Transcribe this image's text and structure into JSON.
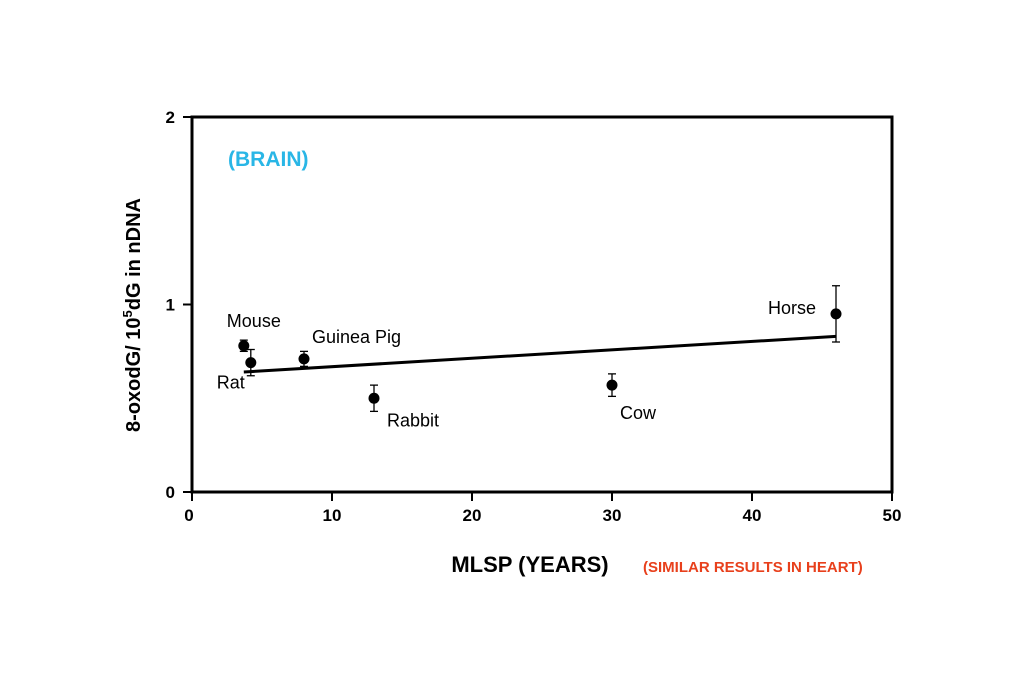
{
  "chart_data": {
    "type": "scatter",
    "title": "",
    "panel_label": "(BRAIN)",
    "note": "(SIMILAR RESULTS IN HEART)",
    "xlabel": "MLSP (YEARS)",
    "ylabel_main": "8-oxodG/ 10",
    "ylabel_sup": "5",
    "ylabel_end": "dG in nDNA",
    "xlim": [
      0,
      50
    ],
    "ylim": [
      0,
      2
    ],
    "x_ticks": [
      0,
      10,
      20,
      30,
      40,
      50
    ],
    "y_ticks": [
      0,
      1,
      2
    ],
    "grid": false,
    "points": [
      {
        "name": "Mouse",
        "x": 3.7,
        "y": 0.78,
        "err": 0.03
      },
      {
        "name": "Rat",
        "x": 4.2,
        "y": 0.69,
        "err": 0.07
      },
      {
        "name": "Guinea Pig",
        "x": 8.0,
        "y": 0.71,
        "err": 0.04
      },
      {
        "name": "Rabbit",
        "x": 13.0,
        "y": 0.5,
        "err": 0.07
      },
      {
        "name": "Cow",
        "x": 30.0,
        "y": 0.57,
        "err": 0.06
      },
      {
        "name": "Horse",
        "x": 46.0,
        "y": 0.95,
        "err": 0.15
      }
    ],
    "regression": {
      "x": [
        3.7,
        46.0
      ],
      "y": [
        0.64,
        0.83
      ]
    },
    "colors": {
      "panel_label": "#29b6e6",
      "note": "#e8401c",
      "marks": "#000000"
    }
  }
}
